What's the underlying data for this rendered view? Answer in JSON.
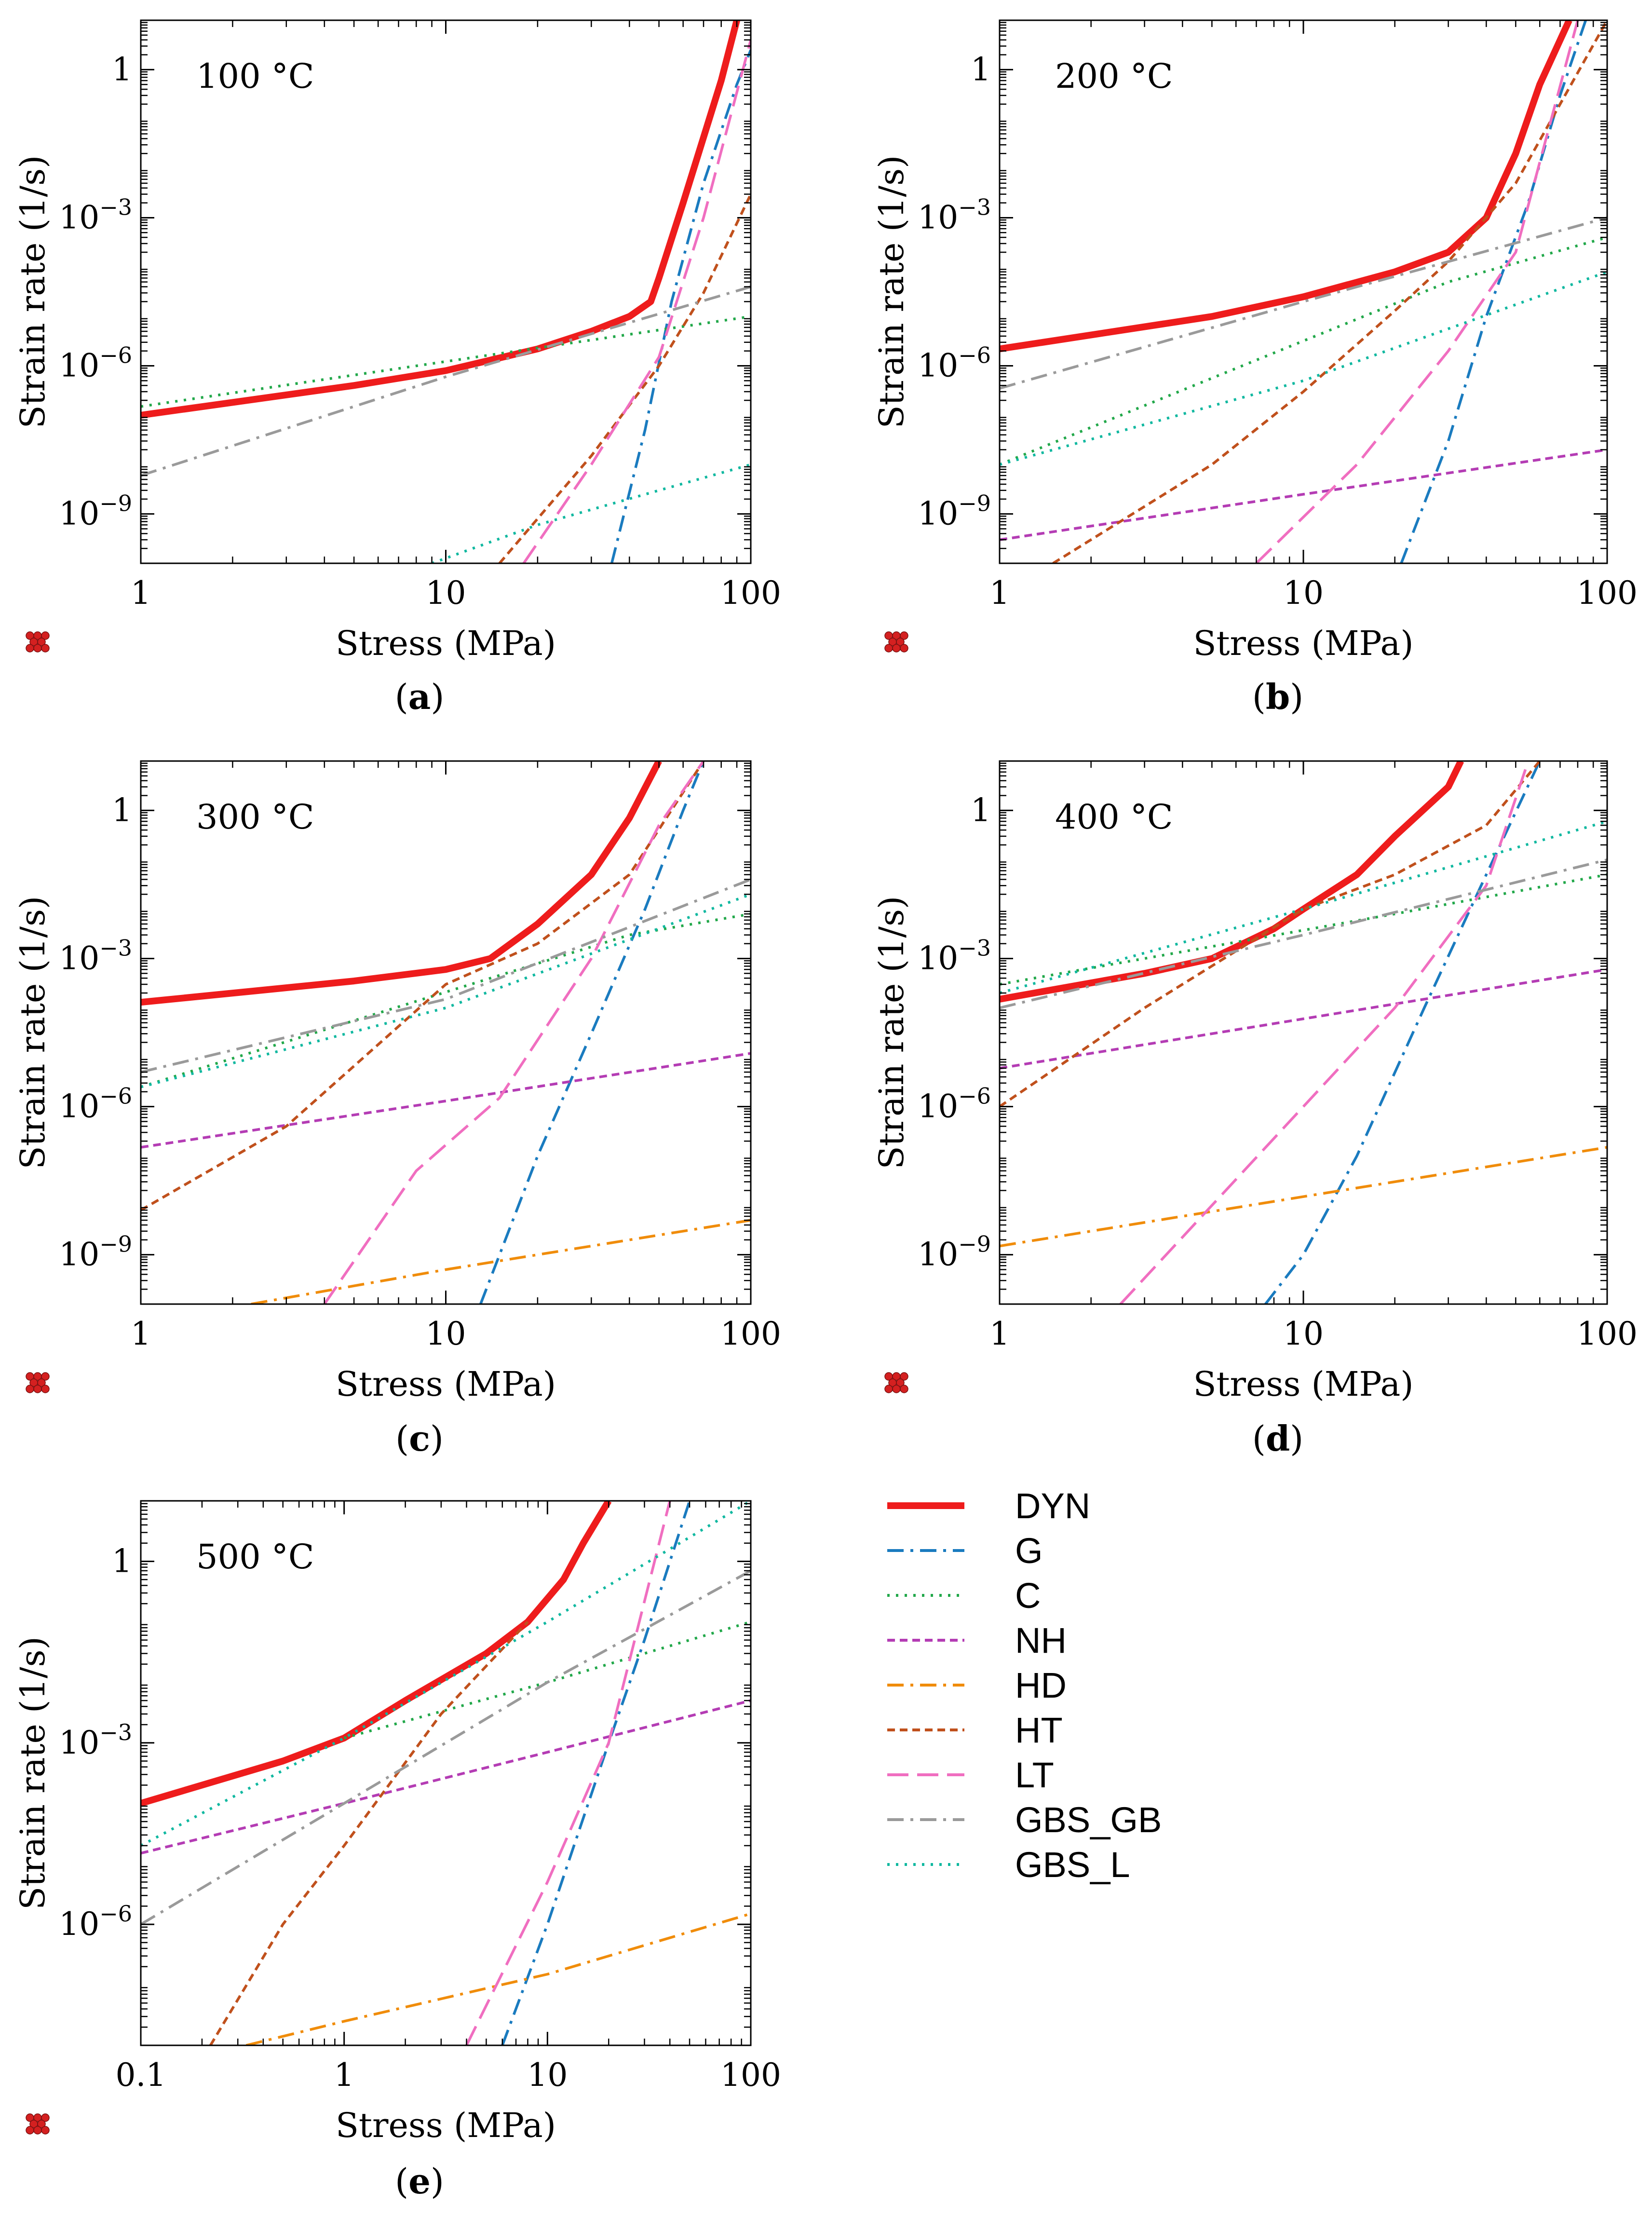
{
  "figure": {
    "series_styles": {
      "DYN": {
        "color": "#ee1c1c",
        "dash": "solid"
      },
      "G": {
        "color": "#1a7bbf",
        "dash": "dashdot"
      },
      "C": {
        "color": "#22a84a",
        "dash": "dot"
      },
      "NH": {
        "color": "#b43cb4",
        "dash": "shortdash"
      },
      "HD": {
        "color": "#f08c0a",
        "dash": "dashdot"
      },
      "HT": {
        "color": "#c0501c",
        "dash": "shortdash"
      },
      "LT": {
        "color": "#f06ec0",
        "dash": "longdash"
      },
      "GBS_GB": {
        "color": "#9a9a9a",
        "dash": "dashdot"
      },
      "GBS_L": {
        "color": "#10b8a0",
        "dash": "dot"
      }
    },
    "legend": {
      "entries": [
        "DYN",
        "G",
        "C",
        "NH",
        "HD",
        "HT",
        "LT",
        "GBS_GB",
        "GBS_L"
      ],
      "placement": "bottom-right"
    }
  },
  "chart_data": [
    {
      "type": "line",
      "title": "100 °C",
      "caption": "(a)",
      "caption_letter": "a",
      "xlabel": "Stress (MPa)",
      "ylabel": "Strain rate (1/s)",
      "xscale": "log",
      "yscale": "log",
      "xlim": [
        1,
        100
      ],
      "ylim": [
        1e-10,
        10
      ],
      "xticks": [
        1,
        10,
        100
      ],
      "xtick_labels": [
        "1",
        "10",
        "100"
      ],
      "yticks": [
        1e-09,
        1e-06,
        0.001,
        1
      ],
      "ytick_labels": [
        "10",
        "10",
        "10",
        "1"
      ],
      "ytick_exponents": [
        "−9",
        "−6",
        "−3",
        ""
      ],
      "series": [
        {
          "name": "DYN",
          "x": [
            1,
            5,
            10,
            20,
            30,
            40,
            47,
            50,
            60,
            80,
            90
          ],
          "y": [
            1e-07,
            4e-07,
            8e-07,
            2.2e-06,
            5e-06,
            1e-05,
            2e-05,
            6e-05,
            0.002,
            0.6,
            10
          ]
        },
        {
          "name": "G",
          "x": [
            35,
            45,
            55,
            70,
            90,
            100
          ],
          "y": [
            1e-10,
            5e-08,
            2e-05,
            0.005,
            0.5,
            2.5
          ]
        },
        {
          "name": "C",
          "x": [
            1,
            20,
            100
          ],
          "y": [
            1.5e-07,
            2.3e-06,
            1e-05
          ]
        },
        {
          "name": "HT",
          "x": [
            15,
            30,
            50,
            70,
            100
          ],
          "y": [
            1e-10,
            1.5e-08,
            1e-06,
            3e-05,
            0.003
          ]
        },
        {
          "name": "LT",
          "x": [
            18,
            30,
            50,
            70,
            100
          ],
          "y": [
            1e-10,
            1e-08,
            1.5e-06,
            0.001,
            4
          ]
        },
        {
          "name": "GBS_GB",
          "x": [
            1,
            10,
            100
          ],
          "y": [
            6e-09,
            6e-07,
            4e-05
          ]
        },
        {
          "name": "GBS_L",
          "x": [
            9,
            20,
            50,
            100
          ],
          "y": [
            1e-10,
            6e-10,
            3e-09,
            1e-08
          ]
        }
      ]
    },
    {
      "type": "line",
      "title": "200 °C",
      "caption": "(b)",
      "caption_letter": "b",
      "xlabel": "Stress (MPa)",
      "ylabel": "Strain rate (1/s)",
      "xscale": "log",
      "yscale": "log",
      "xlim": [
        1,
        100
      ],
      "ylim": [
        1e-10,
        10
      ],
      "xticks": [
        1,
        10,
        100
      ],
      "xtick_labels": [
        "1",
        "10",
        "100"
      ],
      "yticks": [
        1e-09,
        1e-06,
        0.001,
        1
      ],
      "ytick_labels": [
        "10",
        "10",
        "10",
        "1"
      ],
      "ytick_exponents": [
        "−9",
        "−6",
        "−3",
        ""
      ],
      "series": [
        {
          "name": "DYN",
          "x": [
            1,
            5,
            10,
            20,
            30,
            40,
            50,
            60,
            75
          ],
          "y": [
            2.2e-06,
            1e-05,
            2.5e-05,
            8e-05,
            0.0002,
            0.001,
            0.02,
            0.5,
            10
          ]
        },
        {
          "name": "G",
          "x": [
            21,
            30,
            40,
            55,
            70,
            85
          ],
          "y": [
            1e-10,
            3e-08,
            1e-05,
            0.002,
            0.3,
            10
          ]
        },
        {
          "name": "C",
          "x": [
            1,
            30,
            100
          ],
          "y": [
            1e-08,
            5e-05,
            0.0004
          ]
        },
        {
          "name": "NH",
          "x": [
            1,
            10,
            100
          ],
          "y": [
            3e-10,
            2.5e-09,
            2e-08
          ]
        },
        {
          "name": "HT",
          "x": [
            1.5,
            5,
            10,
            20,
            30,
            50,
            100
          ],
          "y": [
            1e-10,
            1e-08,
            3e-07,
            1.3e-05,
            0.00013,
            0.005,
            10
          ]
        },
        {
          "name": "LT",
          "x": [
            7,
            15,
            30,
            50,
            80
          ],
          "y": [
            1e-10,
            1e-08,
            2e-06,
            0.0002,
            10
          ]
        },
        {
          "name": "GBS_GB",
          "x": [
            1,
            10,
            100
          ],
          "y": [
            3.5e-07,
            2e-05,
            0.001
          ]
        },
        {
          "name": "GBS_L",
          "x": [
            1,
            10,
            100
          ],
          "y": [
            1e-08,
            5e-07,
            8e-05
          ]
        }
      ]
    },
    {
      "type": "line",
      "title": "300 °C",
      "caption": "(c)",
      "caption_letter": "c",
      "xlabel": "Stress (MPa)",
      "ylabel": "Strain rate (1/s)",
      "xscale": "log",
      "yscale": "log",
      "xlim": [
        1,
        100
      ],
      "ylim": [
        1e-10,
        10
      ],
      "xticks": [
        1,
        10,
        100
      ],
      "xtick_labels": [
        "1",
        "10",
        "100"
      ],
      "yticks": [
        1e-09,
        1e-06,
        0.001,
        1
      ],
      "ytick_labels": [
        "10",
        "10",
        "10",
        "1"
      ],
      "ytick_exponents": [
        "−9",
        "−6",
        "−3",
        ""
      ],
      "series": [
        {
          "name": "DYN",
          "x": [
            1,
            5,
            10,
            14,
            20,
            30,
            40,
            50
          ],
          "y": [
            0.00013,
            0.00035,
            0.0006,
            0.001,
            0.005,
            0.05,
            0.7,
            10
          ]
        },
        {
          "name": "G",
          "x": [
            13,
            20,
            30,
            45,
            60,
            70
          ],
          "y": [
            1e-10,
            1e-07,
            3e-05,
            0.01,
            1,
            10
          ]
        },
        {
          "name": "C",
          "x": [
            1,
            40,
            100
          ],
          "y": [
            2.5e-06,
            0.003,
            0.008
          ]
        },
        {
          "name": "NH",
          "x": [
            1,
            10,
            100
          ],
          "y": [
            1.5e-07,
            1.3e-06,
            1.2e-05
          ]
        },
        {
          "name": "HD",
          "x": [
            2.3,
            10,
            100
          ],
          "y": [
            1e-10,
            5e-10,
            5e-09
          ]
        },
        {
          "name": "HT",
          "x": [
            1,
            3,
            10,
            20,
            40,
            70
          ],
          "y": [
            8e-09,
            4e-07,
            0.0003,
            0.002,
            0.05,
            10
          ]
        },
        {
          "name": "LT",
          "x": [
            4,
            8,
            15,
            30,
            50,
            70
          ],
          "y": [
            1e-10,
            5e-08,
            1.5e-06,
            0.001,
            0.5,
            10
          ]
        },
        {
          "name": "GBS_GB",
          "x": [
            1,
            10,
            100
          ],
          "y": [
            5e-06,
            0.00015,
            0.04
          ]
        },
        {
          "name": "GBS_L",
          "x": [
            1,
            10,
            100
          ],
          "y": [
            2.5e-06,
            0.0001,
            0.02
          ]
        }
      ]
    },
    {
      "type": "line",
      "title": "400 °C",
      "caption": "(d)",
      "caption_letter": "d",
      "xlabel": "Stress (MPa)",
      "ylabel": "Strain rate (1/s)",
      "xscale": "log",
      "yscale": "log",
      "xlim": [
        1,
        100
      ],
      "ylim": [
        1e-10,
        10
      ],
      "xticks": [
        1,
        10,
        100
      ],
      "xtick_labels": [
        "1",
        "10",
        "100"
      ],
      "yticks": [
        1e-09,
        1e-06,
        0.001,
        1
      ],
      "ytick_labels": [
        "10",
        "10",
        "10",
        "1"
      ],
      "ytick_exponents": [
        "−9",
        "−6",
        "−3",
        ""
      ],
      "series": [
        {
          "name": "DYN",
          "x": [
            1,
            3,
            5,
            8,
            10,
            15,
            20,
            30,
            33
          ],
          "y": [
            0.00015,
            0.0005,
            0.001,
            0.004,
            0.01,
            0.05,
            0.3,
            3,
            10
          ]
        },
        {
          "name": "G",
          "x": [
            7.5,
            10,
            15,
            25,
            40,
            60
          ],
          "y": [
            1e-10,
            1e-09,
            1e-07,
            0.0001,
            0.05,
            10
          ]
        },
        {
          "name": "C",
          "x": [
            1,
            20,
            100
          ],
          "y": [
            0.0003,
            0.008,
            0.05
          ]
        },
        {
          "name": "NH",
          "x": [
            1,
            10,
            100
          ],
          "y": [
            6e-06,
            6e-05,
            0.0006
          ]
        },
        {
          "name": "HD",
          "x": [
            1,
            10,
            100
          ],
          "y": [
            1.5e-09,
            1.5e-08,
            1.5e-07
          ]
        },
        {
          "name": "HT",
          "x": [
            1,
            3,
            10,
            20,
            40,
            60
          ],
          "y": [
            1e-06,
            0.0001,
            0.01,
            0.05,
            0.5,
            10
          ]
        },
        {
          "name": "LT",
          "x": [
            2.5,
            5,
            10,
            20,
            40,
            55
          ],
          "y": [
            1e-10,
            1e-08,
            1e-06,
            0.0001,
            0.03,
            10
          ]
        },
        {
          "name": "GBS_GB",
          "x": [
            1,
            10,
            100
          ],
          "y": [
            0.0001,
            0.003,
            0.1
          ]
        },
        {
          "name": "GBS_L",
          "x": [
            1,
            10,
            100
          ],
          "y": [
            0.0002,
            0.01,
            0.6
          ]
        }
      ]
    },
    {
      "type": "line",
      "title": "500 °C",
      "caption": "(e)",
      "caption_letter": "e",
      "xlabel": "Stress (MPa)",
      "ylabel": "Strain rate (1/s)",
      "xscale": "log",
      "yscale": "log",
      "xlim": [
        0.1,
        100
      ],
      "ylim": [
        1e-08,
        10
      ],
      "xticks": [
        0.1,
        1,
        10,
        100
      ],
      "xtick_labels": [
        "0.1",
        "1",
        "10",
        "100"
      ],
      "yticks": [
        1e-06,
        0.001,
        1
      ],
      "ytick_labels": [
        "10",
        "10",
        "1"
      ],
      "ytick_exponents": [
        "−6",
        "−3",
        ""
      ],
      "series": [
        {
          "name": "DYN",
          "x": [
            0.1,
            0.5,
            1,
            2,
            5,
            8,
            12,
            15,
            20
          ],
          "y": [
            0.0001,
            0.0005,
            0.0012,
            0.005,
            0.03,
            0.1,
            0.5,
            2,
            10
          ]
        },
        {
          "name": "G",
          "x": [
            6,
            10,
            20,
            30,
            50
          ],
          "y": [
            1e-08,
            1e-06,
            0.001,
            0.05,
            10
          ]
        },
        {
          "name": "C",
          "x": [
            1,
            10,
            100
          ],
          "y": [
            0.0012,
            0.01,
            0.1
          ]
        },
        {
          "name": "NH",
          "x": [
            0.1,
            1,
            10,
            100
          ],
          "y": [
            1.5e-05,
            0.0001,
            0.0007,
            0.005
          ]
        },
        {
          "name": "HD",
          "x": [
            0.33,
            1,
            10,
            100
          ],
          "y": [
            1e-08,
            2.5e-08,
            1.5e-07,
            1.5e-06
          ]
        },
        {
          "name": "HT",
          "x": [
            0.22,
            0.5,
            1,
            3,
            8
          ],
          "y": [
            1e-08,
            1e-06,
            2e-05,
            0.003,
            0.1
          ]
        },
        {
          "name": "LT",
          "x": [
            4,
            10,
            20,
            40
          ],
          "y": [
            1e-08,
            5e-06,
            0.001,
            10
          ]
        },
        {
          "name": "GBS_GB",
          "x": [
            0.1,
            1,
            10,
            100
          ],
          "y": [
            1e-06,
            0.0001,
            0.01,
            0.7
          ]
        },
        {
          "name": "GBS_L",
          "x": [
            0.1,
            1,
            10,
            100
          ],
          "y": [
            2e-05,
            0.0012,
            0.1,
            10
          ]
        }
      ]
    }
  ]
}
